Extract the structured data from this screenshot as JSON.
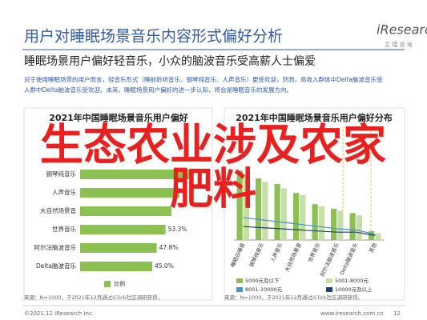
{
  "header": {
    "title": "用户对睡眠场景音乐内容形式偏好分析",
    "logo": "iResearch",
    "logo_sub": "艾 瑞 咨 询",
    "subtitle": "睡眠场景用户偏好轻音乐，小众的脑波音乐受高薪人士偏爱",
    "paragraph_lines": [
      "对于使用睡眠场景的用户而言，轻音乐形式（睡前聆听音乐、钢琴纯音乐、人声音乐）更受欢迎，然而，高收入群体中Delta脑波音乐受",
      "人群中Delta脑波音乐受欢迎。未来，睡眠场景用户偏好的进一步认知，将会是睡眠音乐的发展方向。"
    ]
  },
  "overlay": {
    "line1": "生态农业涉及农家",
    "line2": "肥料"
  },
  "chart_data": [
    {
      "type": "hbar",
      "title": "2021年中国睡眠场景音乐用户偏好",
      "categories": [
        "钢琴纯音乐",
        "人声音乐",
        "大自然场景音",
        "世界音乐",
        "阿尔法脑波音乐",
        "Delta脑波音乐"
      ],
      "values": [
        70,
        62,
        57,
        53.3,
        47.8,
        45.0
      ],
      "value_labels": [
        null,
        null,
        null,
        "53.3%",
        "47.8%",
        "45.0%"
      ],
      "series_name": "比例",
      "color": "#8cc152",
      "xlim": [
        0,
        100
      ],
      "source": "来源：N=1000，于2021年12月通过iClick社区调研获得。"
    },
    {
      "type": "bar-line",
      "title": "2021年中国睡眠场景音乐用户偏好分布",
      "categories": [
        "睡眠白噪音",
        "钢琴纯音乐",
        "人声音乐",
        "大自然场景音",
        "世界音乐",
        "阿尔法脑波音乐",
        "Delta脑波音乐",
        "其他"
      ],
      "ylim": [
        0,
        100
      ],
      "series": [
        {
          "name": "5000元及以下",
          "color": "#8cc152",
          "kind": "bar",
          "values": [
            62,
            55,
            50,
            42,
            32,
            28,
            24,
            8
          ]
        },
        {
          "name": "5001-8000元",
          "color": "#c5e0a5",
          "kind": "bar",
          "values": [
            58,
            52,
            46,
            40,
            30,
            26,
            22,
            6
          ]
        },
        {
          "name": "8001-10000元",
          "color": "#4a90d9",
          "kind": "line",
          "values": [
            20,
            18,
            16,
            14,
            12,
            10,
            9,
            5
          ]
        },
        {
          "name": "10000元及以上",
          "color": "#1f3f77",
          "kind": "line",
          "values": [
            12,
            11,
            10,
            9,
            8,
            7,
            7,
            4
          ]
        }
      ],
      "source": "来源：N=1000，于2021年12月通过iClick社区调研获得。"
    }
  ],
  "footer": {
    "copyright": "©2021.12 iResearch Inc.",
    "website": "www.iresearch.com.cn",
    "page": "12"
  }
}
